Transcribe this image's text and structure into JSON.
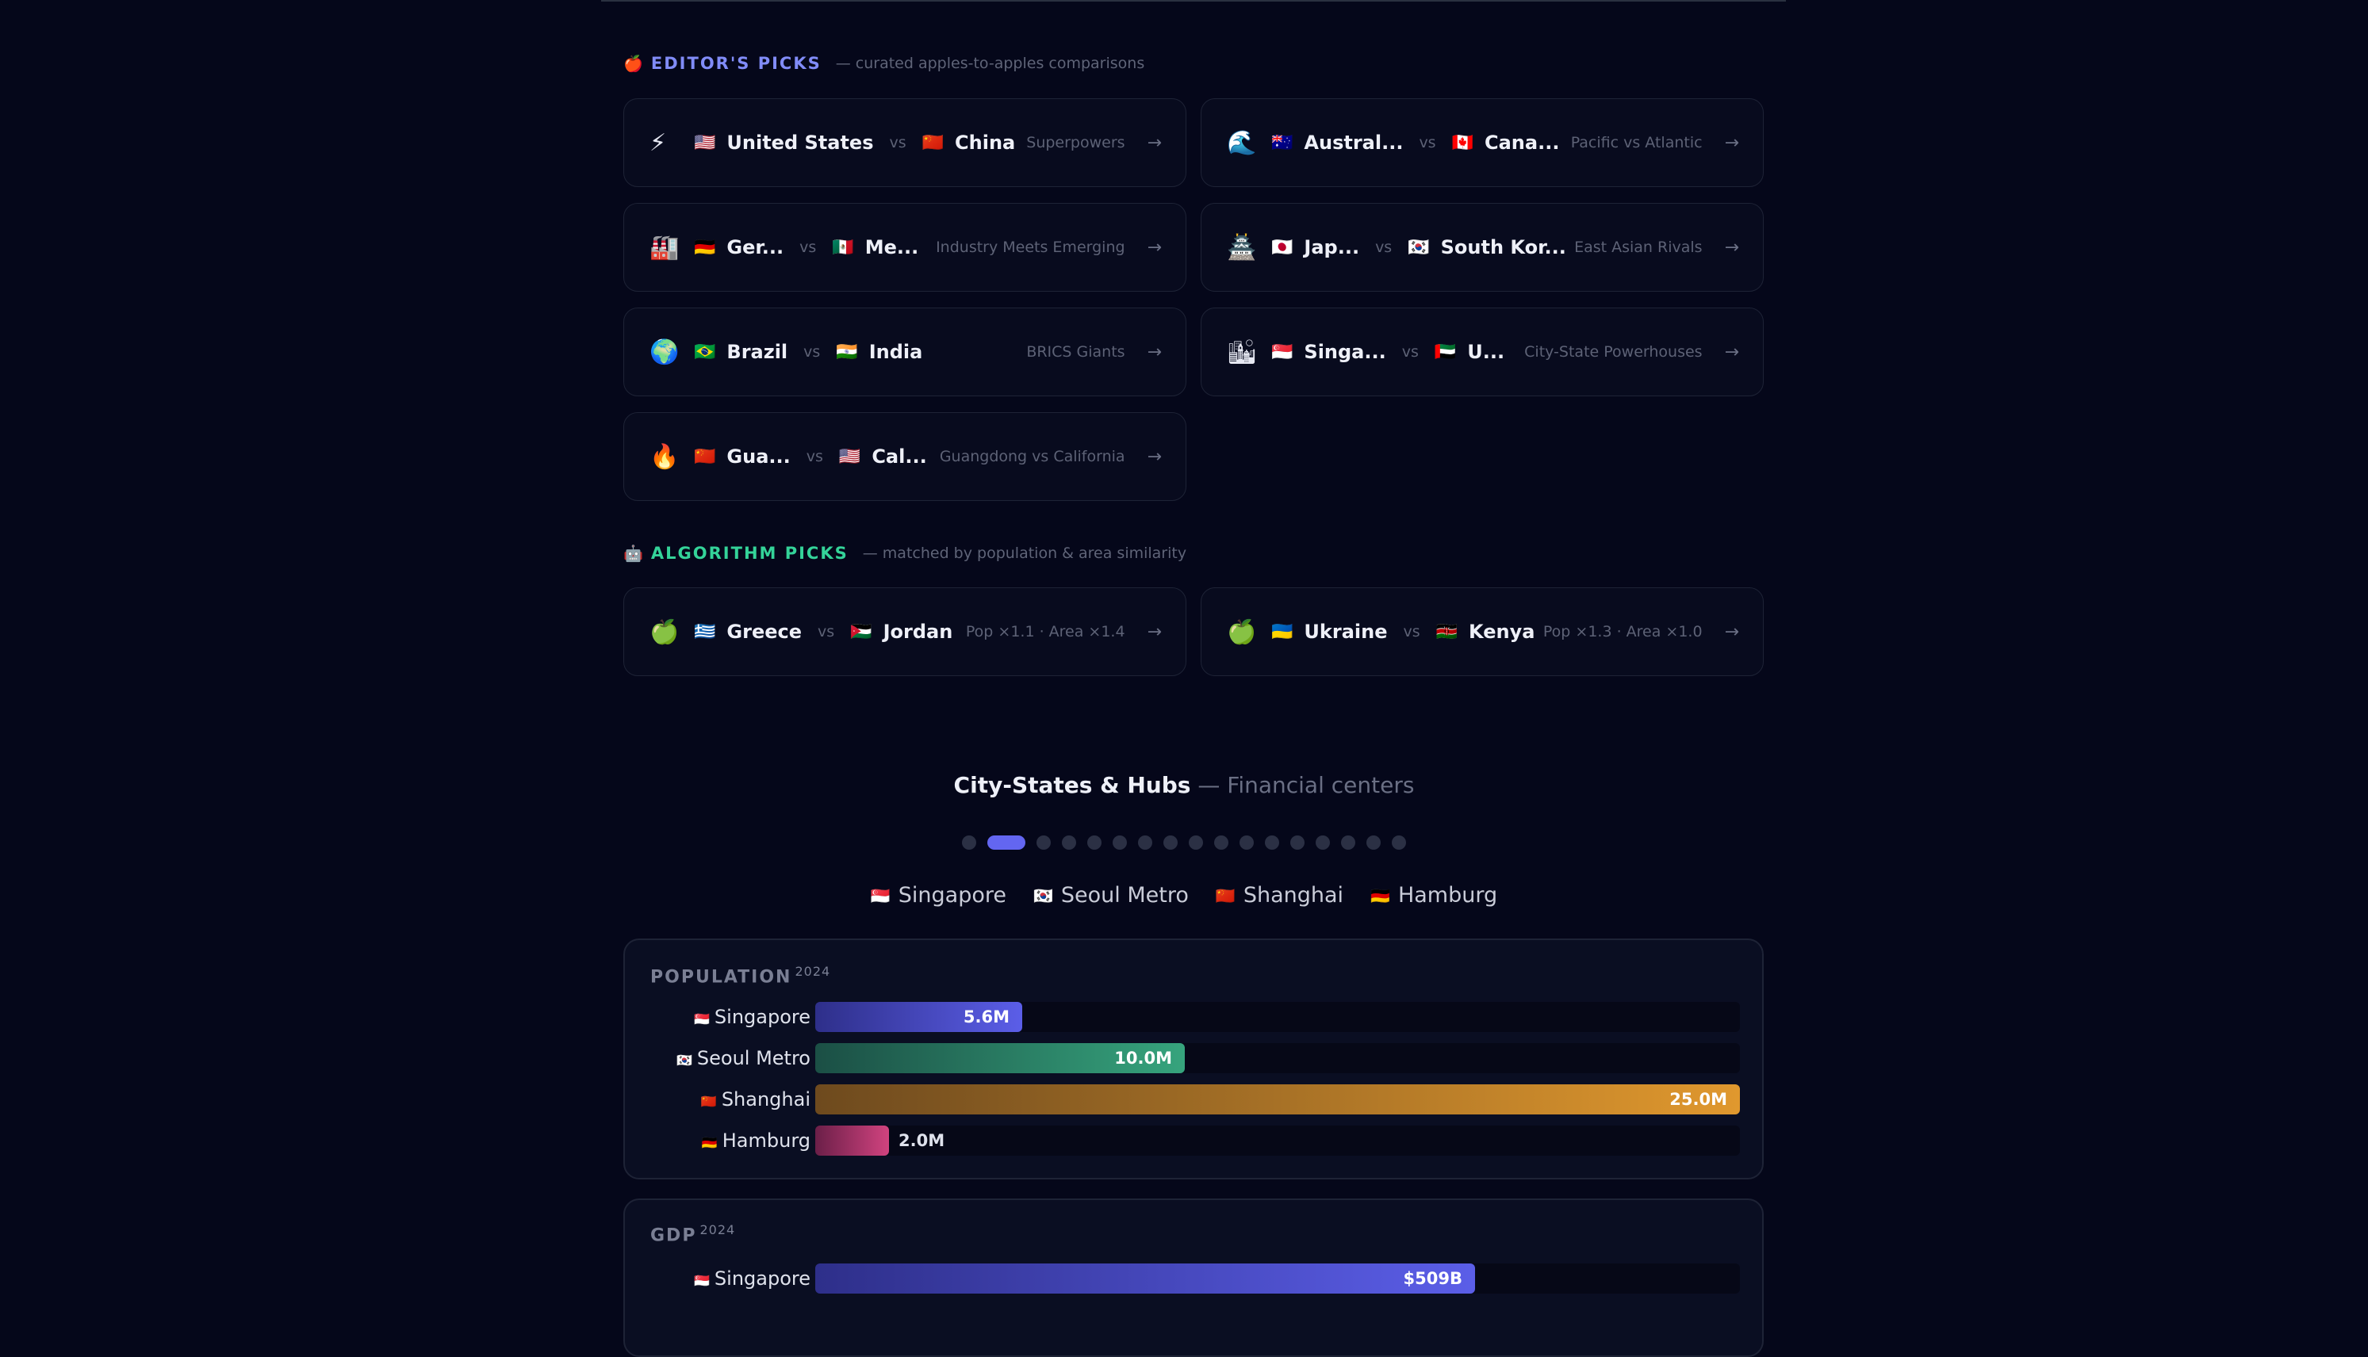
{
  "editors_picks": {
    "icon": "apple-icon",
    "title": "EDITOR'S PICKS",
    "subtitle": "— curated apples-to-apples comparisons",
    "accent": "#818cf8",
    "cards": [
      {
        "emoji": "⚡",
        "a_flag": "🇺🇸",
        "a": "United States",
        "vs": "vs",
        "b_flag": "🇨🇳",
        "b": "China",
        "tag": "Superpowers"
      },
      {
        "emoji": "🌊",
        "a_flag": "🇦🇺",
        "a": "Austral...",
        "vs": "vs",
        "b_flag": "🇨🇦",
        "b": "Cana...",
        "tag": "Pacific vs Atlantic"
      },
      {
        "emoji": "🏭",
        "a_flag": "🇩🇪",
        "a": "Ger...",
        "vs": "vs",
        "b_flag": "🇲🇽",
        "b": "Me...",
        "tag": "Industry Meets Emerging"
      },
      {
        "emoji": "🏯",
        "a_flag": "🇯🇵",
        "a": "Jap...",
        "vs": "vs",
        "b_flag": "🇰🇷",
        "b": "South Kor...",
        "tag": "East Asian Rivals"
      },
      {
        "emoji": "🌍",
        "a_flag": "🇧🇷",
        "a": "Brazil",
        "vs": "vs",
        "b_flag": "🇮🇳",
        "b": "India",
        "tag": "BRICS Giants"
      },
      {
        "emoji": "🏙",
        "a_flag": "🇸🇬",
        "a": "Singa...",
        "vs": "vs",
        "b_flag": "🇦🇪",
        "b": "U...",
        "tag": "City-State Powerhouses"
      },
      {
        "emoji": "🔥",
        "a_flag": "🇨🇳",
        "a": "Gua...",
        "vs": "vs",
        "b_flag": "🇺🇸",
        "b": "Cal...",
        "tag": "Guangdong vs California"
      }
    ]
  },
  "algorithm_picks": {
    "icon": "robot-icon",
    "title": "ALGORITHM PICKS",
    "subtitle": "— matched by population & area similarity",
    "accent": "#34d399",
    "cards": [
      {
        "emoji": "🍏",
        "a_flag": "🇬🇷",
        "a": "Greece",
        "vs": "vs",
        "b_flag": "🇯🇴",
        "b": "Jordan",
        "tag": "Pop ×1.1 · Area ×1.4"
      },
      {
        "emoji": "🍏",
        "a_flag": "🇺🇦",
        "a": "Ukraine",
        "vs": "vs",
        "b_flag": "🇰🇪",
        "b": "Kenya",
        "tag": "Pop ×1.3 · Area ×1.0"
      }
    ]
  },
  "carousel": {
    "title": "City-States & Hubs",
    "subtitle": "— Financial centers",
    "dot_count": 17,
    "active_index": 1
  },
  "legend": [
    {
      "flag": "🇸🇬",
      "name": "Singapore"
    },
    {
      "flag": "🇰🇷",
      "name": "Seoul Metro"
    },
    {
      "flag": "🇨🇳",
      "name": "Shanghai"
    },
    {
      "flag": "🇩🇪",
      "name": "Hamburg"
    }
  ],
  "chart_data": [
    {
      "type": "bar",
      "title": "POPULATION",
      "year": "2024",
      "categories": [
        "Singapore",
        "Seoul Metro",
        "Shanghai",
        "Hamburg"
      ],
      "flags": [
        "🇸🇬",
        "🇰🇷",
        "🇨🇳",
        "🇩🇪"
      ],
      "values": [
        5.6,
        10.0,
        25.0,
        2.0
      ],
      "labels": [
        "5.6M",
        "10.0M",
        "25.0M",
        "2.0M"
      ],
      "colors": [
        [
          "#2e2f8a",
          "#5b5ee8"
        ],
        [
          "#1b4f45",
          "#36a47d"
        ],
        [
          "#6e4a1e",
          "#e0982e"
        ],
        [
          "#6b1f48",
          "#d1437f"
        ]
      ],
      "max": 25.0
    },
    {
      "type": "bar",
      "title": "GDP",
      "year": "2024",
      "categories": [
        "Singapore"
      ],
      "flags": [
        "🇸🇬"
      ],
      "values": [
        509
      ],
      "labels": [
        "$509B"
      ],
      "colors": [
        [
          "#2e2f8a",
          "#5b5ee8"
        ]
      ],
      "max": 713
    }
  ]
}
